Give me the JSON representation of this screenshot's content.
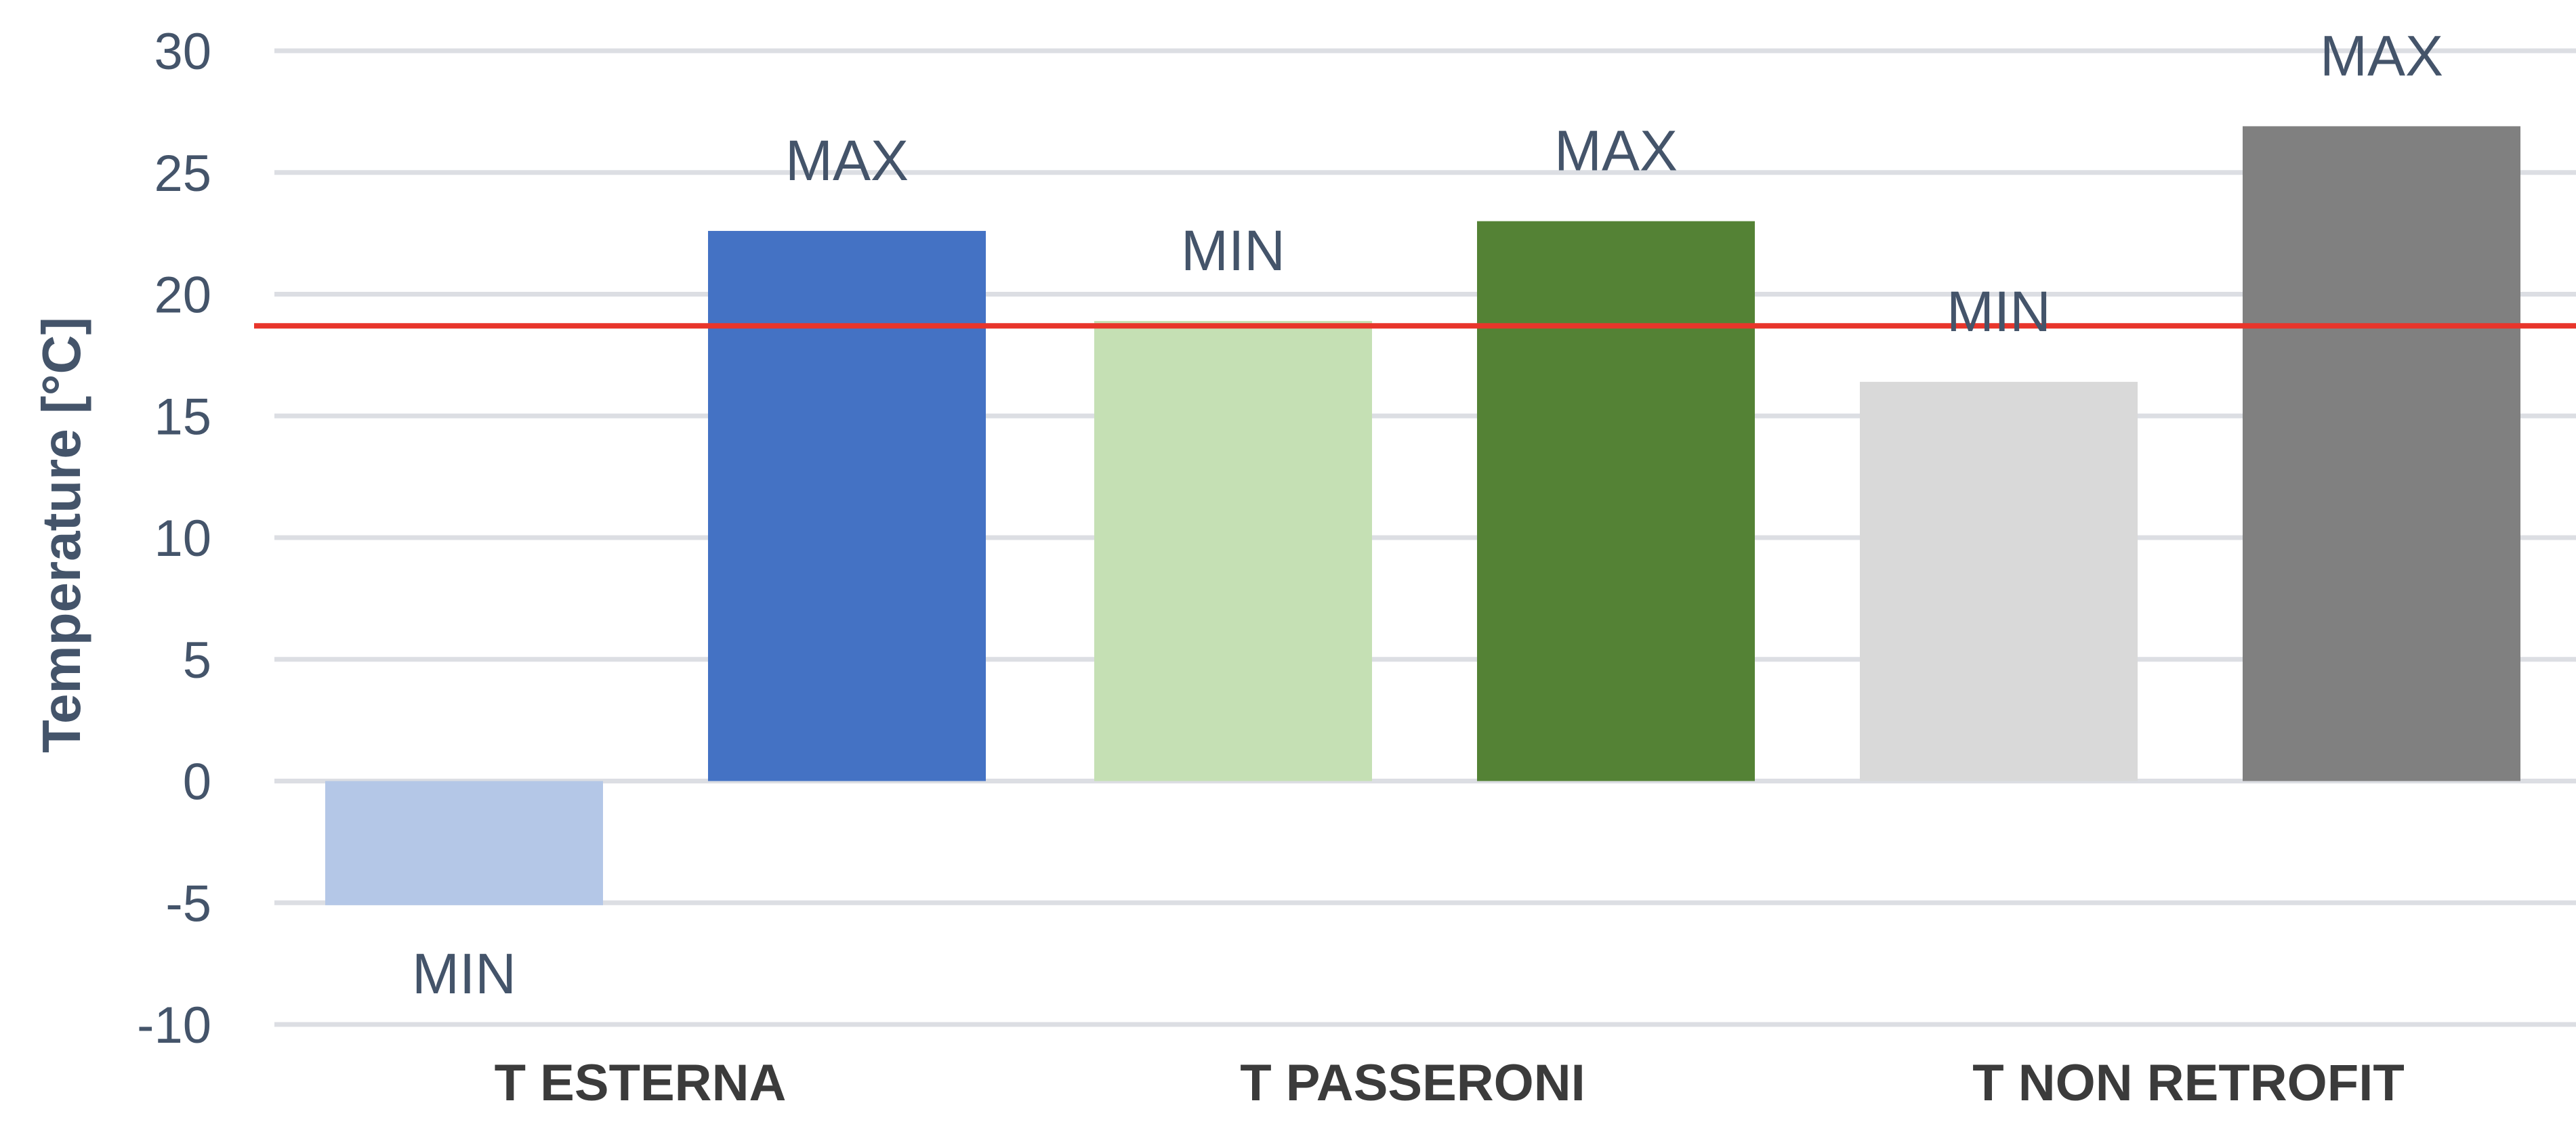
{
  "chart_data": {
    "type": "bar",
    "categories": [
      "T ESTERNA",
      "T  PASSERONI",
      "T  NON RETROFIT"
    ],
    "ylabel": "Temperature  [°C]",
    "ylim": [
      -10,
      30
    ],
    "yticks": [
      30,
      25,
      20,
      15,
      10,
      5,
      0,
      -5,
      -10
    ],
    "grid": true,
    "reference_line": {
      "value": 18.7,
      "color": "#e8352b"
    },
    "bars": [
      {
        "category": "T ESTERNA",
        "label": "MIN",
        "value": -5.1,
        "color": "#b4c7e7"
      },
      {
        "category": "T ESTERNA",
        "label": "MAX",
        "value": 22.6,
        "color": "#4472c4"
      },
      {
        "category": "T  PASSERONI",
        "label": "MIN",
        "value": 18.9,
        "color": "#c5e0b4"
      },
      {
        "category": "T  PASSERONI",
        "label": "MAX",
        "value": 23.0,
        "color": "#548235"
      },
      {
        "category": "T  NON RETROFIT",
        "label": "MIN",
        "value": 16.4,
        "color": "#d9d9d9"
      },
      {
        "category": "T  NON RETROFIT",
        "label": "MAX",
        "value": 26.9,
        "color": "#808080"
      }
    ]
  }
}
